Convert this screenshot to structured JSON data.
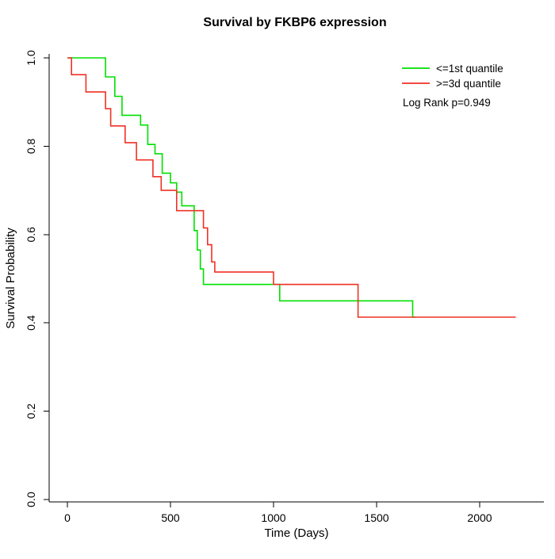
{
  "page": {
    "background": "#ffffff"
  },
  "chart_data": {
    "type": "line",
    "subtype": "kaplan-meier-step",
    "title": "Survival by FKBP6 expression",
    "xlabel": "Time (Days)",
    "ylabel": "Survival Probability",
    "xlim": [
      0,
      2200
    ],
    "ylim": [
      0.0,
      1.0
    ],
    "grid": false,
    "legend_position": "top-right",
    "annotation": "Log Rank p=0.949",
    "xticks": {
      "values": [
        0,
        500,
        1000,
        1500,
        2000
      ],
      "labels": [
        "0",
        "500",
        "1000",
        "1500",
        "2000"
      ]
    },
    "yticks": {
      "values": [
        0.0,
        0.2,
        0.4,
        0.6,
        0.8,
        1.0
      ],
      "labels": [
        "0.0",
        "0.2",
        "0.4",
        "0.6",
        "0.8",
        "1.0"
      ]
    },
    "series": [
      {
        "name": "<=1st quantile",
        "color": "#00e000",
        "steps": [
          [
            0,
            1.0
          ],
          [
            185,
            0.957
          ],
          [
            230,
            0.913
          ],
          [
            265,
            0.87
          ],
          [
            355,
            0.848
          ],
          [
            390,
            0.804
          ],
          [
            425,
            0.783
          ],
          [
            460,
            0.739
          ],
          [
            500,
            0.717
          ],
          [
            530,
            0.696
          ],
          [
            555,
            0.665
          ],
          [
            615,
            0.609
          ],
          [
            630,
            0.565
          ],
          [
            645,
            0.522
          ],
          [
            660,
            0.487
          ],
          [
            1030,
            0.45
          ],
          [
            1675,
            0.413
          ]
        ],
        "end_time": 1690
      },
      {
        "name": ">=3d quantile",
        "color": "#f03124",
        "steps": [
          [
            0,
            1.0
          ],
          [
            20,
            0.962
          ],
          [
            90,
            0.923
          ],
          [
            185,
            0.885
          ],
          [
            210,
            0.846
          ],
          [
            280,
            0.808
          ],
          [
            335,
            0.769
          ],
          [
            415,
            0.731
          ],
          [
            455,
            0.7
          ],
          [
            530,
            0.654
          ],
          [
            660,
            0.615
          ],
          [
            680,
            0.577
          ],
          [
            700,
            0.538
          ],
          [
            715,
            0.515
          ],
          [
            1000,
            0.487
          ],
          [
            1410,
            0.413
          ]
        ],
        "end_time": 2175
      }
    ]
  }
}
